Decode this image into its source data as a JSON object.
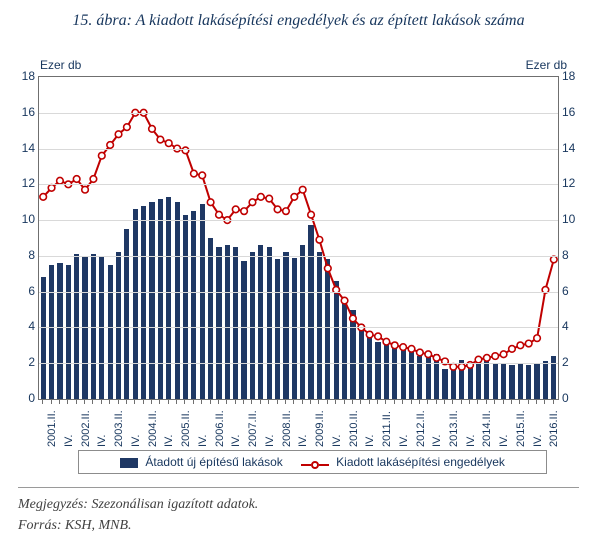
{
  "title": "15. ábra: A kiadott lakásépítési engedélyek és az épített lakások száma",
  "axis_unit_left": "Ezer db",
  "axis_unit_right": "Ezer db",
  "chart": {
    "type": "bar+line",
    "ylim": [
      0,
      18
    ],
    "ytick_step": 2,
    "background_color": "#ffffff",
    "grid_color": "#d9d9d9",
    "border_color": "#6f6f6f",
    "bar_color": "#1f3864",
    "line_color": "#c00000",
    "marker_fill": "#ffffff",
    "marker_stroke": "#c00000",
    "marker_radius": 3.3,
    "line_width": 2,
    "bar_width_ratio": 0.62,
    "tick_fontsize": 12,
    "tick_color": "#17365d",
    "categories": [
      "2001.II.",
      "",
      "IV.",
      "",
      "2002.II.",
      "",
      "IV.",
      "",
      "2003.II.",
      "",
      "IV.",
      "",
      "2004.II.",
      "",
      "IV.",
      "",
      "2005.II.",
      "",
      "IV.",
      "",
      "2006.II.",
      "",
      "IV.",
      "",
      "2007.II.",
      "",
      "IV.",
      "",
      "2008.II.",
      "",
      "IV.",
      "",
      "2009.II.",
      "",
      "IV.",
      "",
      "2010.II.",
      "",
      "IV.",
      "",
      "2011.II.",
      "",
      "IV.",
      "",
      "2012.II.",
      "",
      "IV.",
      "",
      "2013.II.",
      "",
      "IV.",
      "",
      "2014.II.",
      "",
      "IV.",
      "",
      "2015.II.",
      "",
      "IV.",
      "",
      "2016.II.",
      ""
    ],
    "xlabels_visible": [
      "2001.II.",
      "IV.",
      "2002.II.",
      "IV.",
      "2003.II.",
      "IV.",
      "2004.II.",
      "IV.",
      "2005.II.",
      "IV.",
      "2006.II.",
      "IV.",
      "2007.II.",
      "IV.",
      "2008.II.",
      "IV.",
      "2009.II.",
      "IV.",
      "2010.II.",
      "IV.",
      "2011.II.",
      "IV.",
      "2012.II.",
      "IV.",
      "2013.II.",
      "IV.",
      "2014.II.",
      "IV.",
      "2015.II.",
      "IV.",
      "2016.II."
    ],
    "bars": [
      6.8,
      7.5,
      7.6,
      7.5,
      8.1,
      8.0,
      8.1,
      8.0,
      7.5,
      8.2,
      9.5,
      10.6,
      10.8,
      11.0,
      11.2,
      11.3,
      11.0,
      10.3,
      10.5,
      10.9,
      9.0,
      8.5,
      8.6,
      8.5,
      7.7,
      8.2,
      8.6,
      8.5,
      7.8,
      8.2,
      7.9,
      8.6,
      9.7,
      8.2,
      7.8,
      6.6,
      5.6,
      5.0,
      4.2,
      3.8,
      3.2,
      3.3,
      3.0,
      3.0,
      2.8,
      2.4,
      2.4,
      2.5,
      1.7,
      1.9,
      2.2,
      2.0,
      2.2,
      2.1,
      2.0,
      2.0,
      1.9,
      2.0,
      1.9,
      2.0,
      2.1,
      2.4
    ],
    "line": [
      11.3,
      11.8,
      12.2,
      12.0,
      12.3,
      11.7,
      12.3,
      13.6,
      14.2,
      14.8,
      15.2,
      16.0,
      16.0,
      15.1,
      14.5,
      14.3,
      14.0,
      13.9,
      12.6,
      12.5,
      11.0,
      10.3,
      10.0,
      10.6,
      10.5,
      11.0,
      11.3,
      11.2,
      10.6,
      10.5,
      11.3,
      11.7,
      10.3,
      8.9,
      7.3,
      6.1,
      5.5,
      4.5,
      4.0,
      3.6,
      3.5,
      3.2,
      3.0,
      2.9,
      2.8,
      2.6,
      2.5,
      2.3,
      2.1,
      1.8,
      1.8,
      1.9,
      2.2,
      2.3,
      2.4,
      2.5,
      2.8,
      3.0,
      3.1,
      3.4,
      6.1,
      7.8
    ]
  },
  "legend": {
    "bar_label": "Átadott új építésű lakások",
    "line_label": "Kiadott lakásépítési engedélyek"
  },
  "note": "Megjegyzés: Szezonálisan igazított adatok.",
  "source": "Forrás: KSH, MNB."
}
